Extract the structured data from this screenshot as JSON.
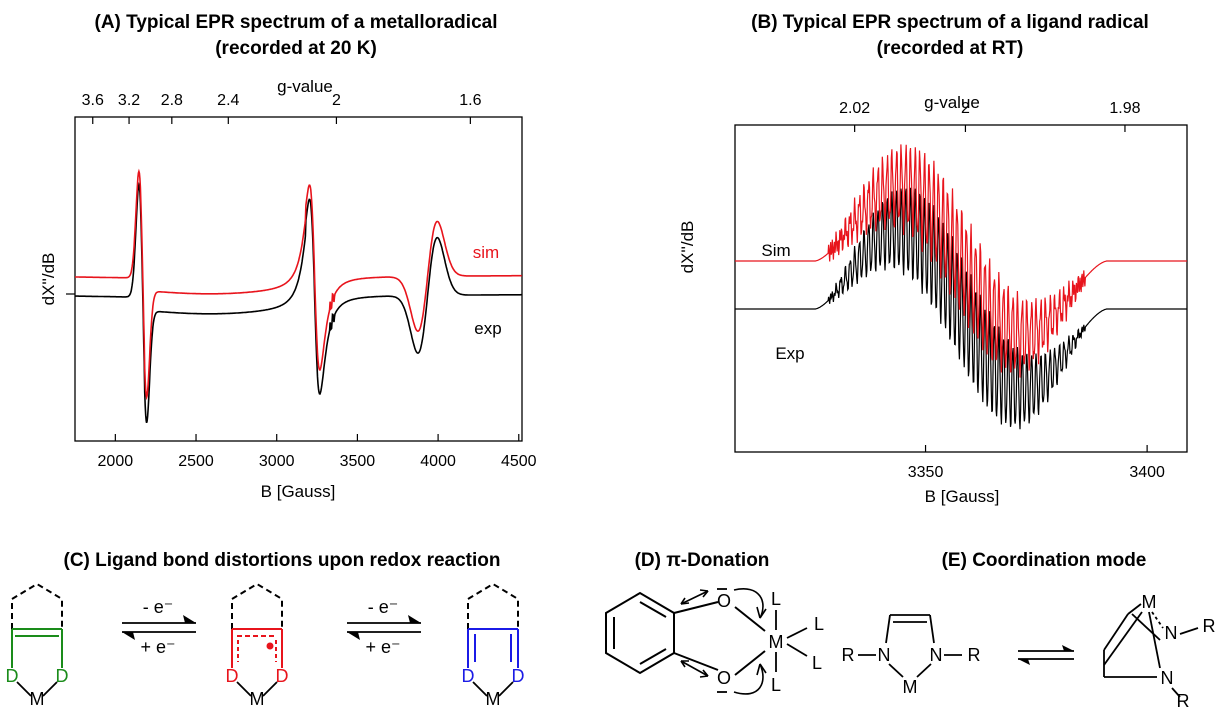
{
  "panel_a": {
    "title_line1": "(A) Typical EPR spectrum of a metalloradical",
    "title_line2": "(recorded at 20 K)"
  },
  "panel_b": {
    "title_line1": "(B) Typical EPR spectrum of a ligand radical",
    "title_line2": "(recorded at RT)"
  },
  "panel_c": {
    "title": "(C) Ligand bond distortions upon redox reaction",
    "arrow_top": "- e⁻",
    "arrow_bottom": "+ e⁻",
    "donor_atom": "D",
    "metal": "M"
  },
  "panel_d": {
    "title": "(D) π-Donation",
    "oxygen": "O",
    "metal": "M",
    "ligand": "L"
  },
  "panel_e": {
    "title": "(E) Coordination mode",
    "r_group": "R",
    "nitrogen": "N",
    "metal": "M"
  },
  "chart_data": [
    {
      "type": "line",
      "xlabel": "B [Gauss]",
      "ylabel": "dX''/dB",
      "top_axis_label": "g-value",
      "xlim": [
        1750,
        4520
      ],
      "x_ticks": [
        "2000",
        "2500",
        "3000",
        "3500",
        "4000",
        "4500"
      ],
      "x_tick_values": [
        2000,
        2500,
        3000,
        3500,
        4000,
        4500
      ],
      "top_ticks": [
        "3.6",
        "3.2",
        "2.8",
        "2.4",
        "2",
        "1.6"
      ],
      "top_tick_positions_gauss": [
        1860,
        2085,
        2350,
        2700,
        3370,
        4200
      ],
      "series": [
        {
          "name": "sim",
          "color": "#e8141c"
        },
        {
          "name": "exp",
          "color": "#000000"
        }
      ]
    },
    {
      "type": "line",
      "xlabel": "B [Gauss]",
      "ylabel": "dX''/dB",
      "top_axis_label": "g-value",
      "xlim": [
        3307,
        3409
      ],
      "x_ticks": [
        "3350",
        "3400"
      ],
      "x_tick_values": [
        3350,
        3400
      ],
      "top_ticks": [
        "2.02",
        "2",
        "1.98"
      ],
      "top_tick_positions_gauss": [
        3334,
        3359,
        3395
      ],
      "series": [
        {
          "name": "Sim",
          "color": "#e8141c"
        },
        {
          "name": "Exp",
          "color": "#000000"
        }
      ]
    }
  ]
}
